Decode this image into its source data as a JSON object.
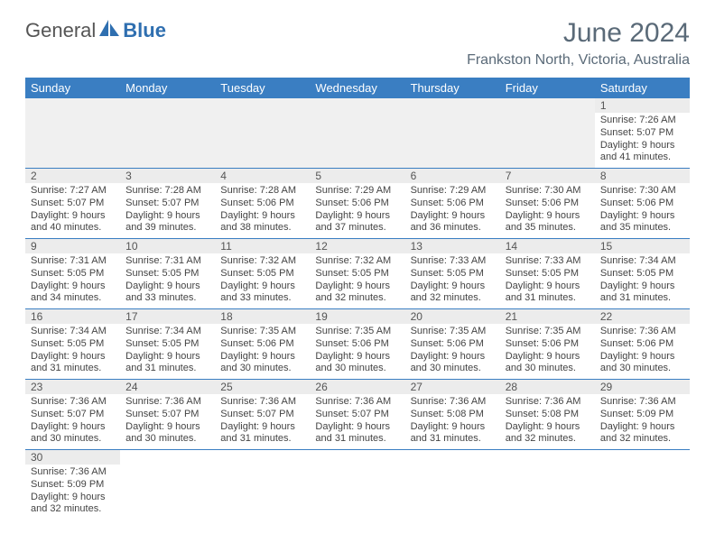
{
  "brand": {
    "part1": "General",
    "part2": "Blue"
  },
  "title": "June 2024",
  "location": "Frankston North, Victoria, Australia",
  "colors": {
    "header_bg": "#3a7ec2",
    "header_text": "#ffffff",
    "daynum_bg": "#ececec",
    "row_border": "#3a7ec2",
    "title_color": "#5a6a78"
  },
  "weekdays": [
    "Sunday",
    "Monday",
    "Tuesday",
    "Wednesday",
    "Thursday",
    "Friday",
    "Saturday"
  ],
  "weeks": [
    [
      null,
      null,
      null,
      null,
      null,
      null,
      {
        "n": "1",
        "sr": "Sunrise: 7:26 AM",
        "ss": "Sunset: 5:07 PM",
        "dl": "Daylight: 9 hours and 41 minutes."
      }
    ],
    [
      {
        "n": "2",
        "sr": "Sunrise: 7:27 AM",
        "ss": "Sunset: 5:07 PM",
        "dl": "Daylight: 9 hours and 40 minutes."
      },
      {
        "n": "3",
        "sr": "Sunrise: 7:28 AM",
        "ss": "Sunset: 5:07 PM",
        "dl": "Daylight: 9 hours and 39 minutes."
      },
      {
        "n": "4",
        "sr": "Sunrise: 7:28 AM",
        "ss": "Sunset: 5:06 PM",
        "dl": "Daylight: 9 hours and 38 minutes."
      },
      {
        "n": "5",
        "sr": "Sunrise: 7:29 AM",
        "ss": "Sunset: 5:06 PM",
        "dl": "Daylight: 9 hours and 37 minutes."
      },
      {
        "n": "6",
        "sr": "Sunrise: 7:29 AM",
        "ss": "Sunset: 5:06 PM",
        "dl": "Daylight: 9 hours and 36 minutes."
      },
      {
        "n": "7",
        "sr": "Sunrise: 7:30 AM",
        "ss": "Sunset: 5:06 PM",
        "dl": "Daylight: 9 hours and 35 minutes."
      },
      {
        "n": "8",
        "sr": "Sunrise: 7:30 AM",
        "ss": "Sunset: 5:06 PM",
        "dl": "Daylight: 9 hours and 35 minutes."
      }
    ],
    [
      {
        "n": "9",
        "sr": "Sunrise: 7:31 AM",
        "ss": "Sunset: 5:05 PM",
        "dl": "Daylight: 9 hours and 34 minutes."
      },
      {
        "n": "10",
        "sr": "Sunrise: 7:31 AM",
        "ss": "Sunset: 5:05 PM",
        "dl": "Daylight: 9 hours and 33 minutes."
      },
      {
        "n": "11",
        "sr": "Sunrise: 7:32 AM",
        "ss": "Sunset: 5:05 PM",
        "dl": "Daylight: 9 hours and 33 minutes."
      },
      {
        "n": "12",
        "sr": "Sunrise: 7:32 AM",
        "ss": "Sunset: 5:05 PM",
        "dl": "Daylight: 9 hours and 32 minutes."
      },
      {
        "n": "13",
        "sr": "Sunrise: 7:33 AM",
        "ss": "Sunset: 5:05 PM",
        "dl": "Daylight: 9 hours and 32 minutes."
      },
      {
        "n": "14",
        "sr": "Sunrise: 7:33 AM",
        "ss": "Sunset: 5:05 PM",
        "dl": "Daylight: 9 hours and 31 minutes."
      },
      {
        "n": "15",
        "sr": "Sunrise: 7:34 AM",
        "ss": "Sunset: 5:05 PM",
        "dl": "Daylight: 9 hours and 31 minutes."
      }
    ],
    [
      {
        "n": "16",
        "sr": "Sunrise: 7:34 AM",
        "ss": "Sunset: 5:05 PM",
        "dl": "Daylight: 9 hours and 31 minutes."
      },
      {
        "n": "17",
        "sr": "Sunrise: 7:34 AM",
        "ss": "Sunset: 5:05 PM",
        "dl": "Daylight: 9 hours and 31 minutes."
      },
      {
        "n": "18",
        "sr": "Sunrise: 7:35 AM",
        "ss": "Sunset: 5:06 PM",
        "dl": "Daylight: 9 hours and 30 minutes."
      },
      {
        "n": "19",
        "sr": "Sunrise: 7:35 AM",
        "ss": "Sunset: 5:06 PM",
        "dl": "Daylight: 9 hours and 30 minutes."
      },
      {
        "n": "20",
        "sr": "Sunrise: 7:35 AM",
        "ss": "Sunset: 5:06 PM",
        "dl": "Daylight: 9 hours and 30 minutes."
      },
      {
        "n": "21",
        "sr": "Sunrise: 7:35 AM",
        "ss": "Sunset: 5:06 PM",
        "dl": "Daylight: 9 hours and 30 minutes."
      },
      {
        "n": "22",
        "sr": "Sunrise: 7:36 AM",
        "ss": "Sunset: 5:06 PM",
        "dl": "Daylight: 9 hours and 30 minutes."
      }
    ],
    [
      {
        "n": "23",
        "sr": "Sunrise: 7:36 AM",
        "ss": "Sunset: 5:07 PM",
        "dl": "Daylight: 9 hours and 30 minutes."
      },
      {
        "n": "24",
        "sr": "Sunrise: 7:36 AM",
        "ss": "Sunset: 5:07 PM",
        "dl": "Daylight: 9 hours and 30 minutes."
      },
      {
        "n": "25",
        "sr": "Sunrise: 7:36 AM",
        "ss": "Sunset: 5:07 PM",
        "dl": "Daylight: 9 hours and 31 minutes."
      },
      {
        "n": "26",
        "sr": "Sunrise: 7:36 AM",
        "ss": "Sunset: 5:07 PM",
        "dl": "Daylight: 9 hours and 31 minutes."
      },
      {
        "n": "27",
        "sr": "Sunrise: 7:36 AM",
        "ss": "Sunset: 5:08 PM",
        "dl": "Daylight: 9 hours and 31 minutes."
      },
      {
        "n": "28",
        "sr": "Sunrise: 7:36 AM",
        "ss": "Sunset: 5:08 PM",
        "dl": "Daylight: 9 hours and 32 minutes."
      },
      {
        "n": "29",
        "sr": "Sunrise: 7:36 AM",
        "ss": "Sunset: 5:09 PM",
        "dl": "Daylight: 9 hours and 32 minutes."
      }
    ],
    [
      {
        "n": "30",
        "sr": "Sunrise: 7:36 AM",
        "ss": "Sunset: 5:09 PM",
        "dl": "Daylight: 9 hours and 32 minutes."
      },
      null,
      null,
      null,
      null,
      null,
      null
    ]
  ]
}
